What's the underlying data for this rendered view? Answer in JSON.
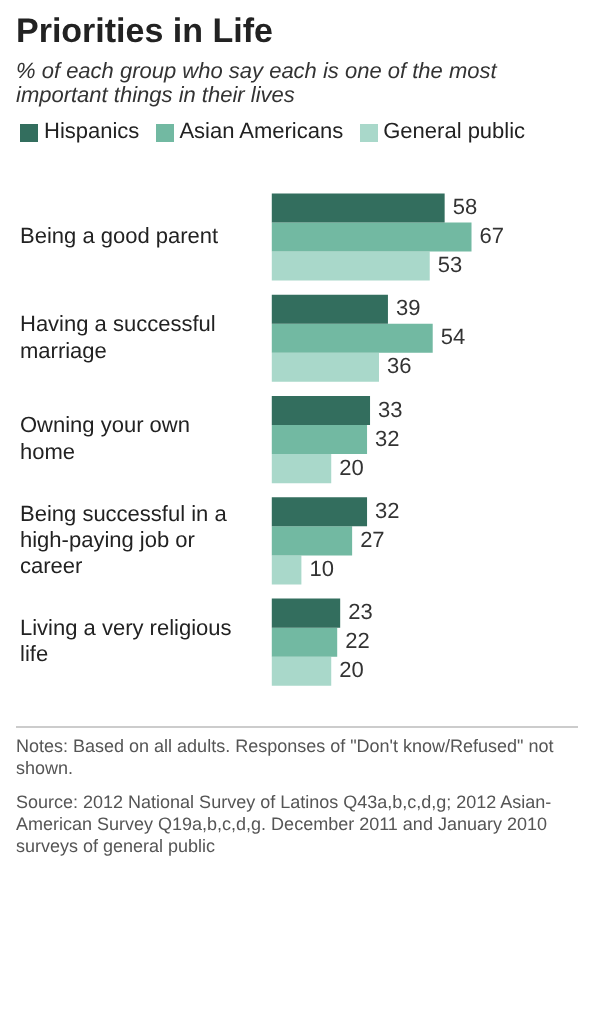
{
  "chart_data": {
    "type": "bar",
    "orientation": "horizontal",
    "title": "Priorities in Life",
    "subtitle": "% of each group who say each is one of the most important things in their lives",
    "categories": [
      "Being a good parent",
      "Having a successful marriage",
      "Owning your own home",
      "Being successful in a high-paying job or career",
      "Living a very religious life"
    ],
    "series": [
      {
        "name": "Hispanics",
        "color": "#336e5e",
        "values": [
          58,
          39,
          33,
          32,
          23
        ]
      },
      {
        "name": "Asian Americans",
        "color": "#72b9a2",
        "values": [
          67,
          54,
          32,
          27,
          22
        ]
      },
      {
        "name": "General public",
        "color": "#a9d8ca",
        "values": [
          53,
          36,
          20,
          10,
          20
        ]
      }
    ],
    "data_labels": true,
    "legend": "top",
    "annotations": [
      "Notes: Based on all adults. Responses of \"Don't know/Refused\" not shown.",
      "Source: 2012 National Survey of Latinos Q43a,b,c,d,g; 2012 Asian-American Survey Q19a,b,c,d,g. December 2011 and January 2010 surveys of general public"
    ]
  }
}
